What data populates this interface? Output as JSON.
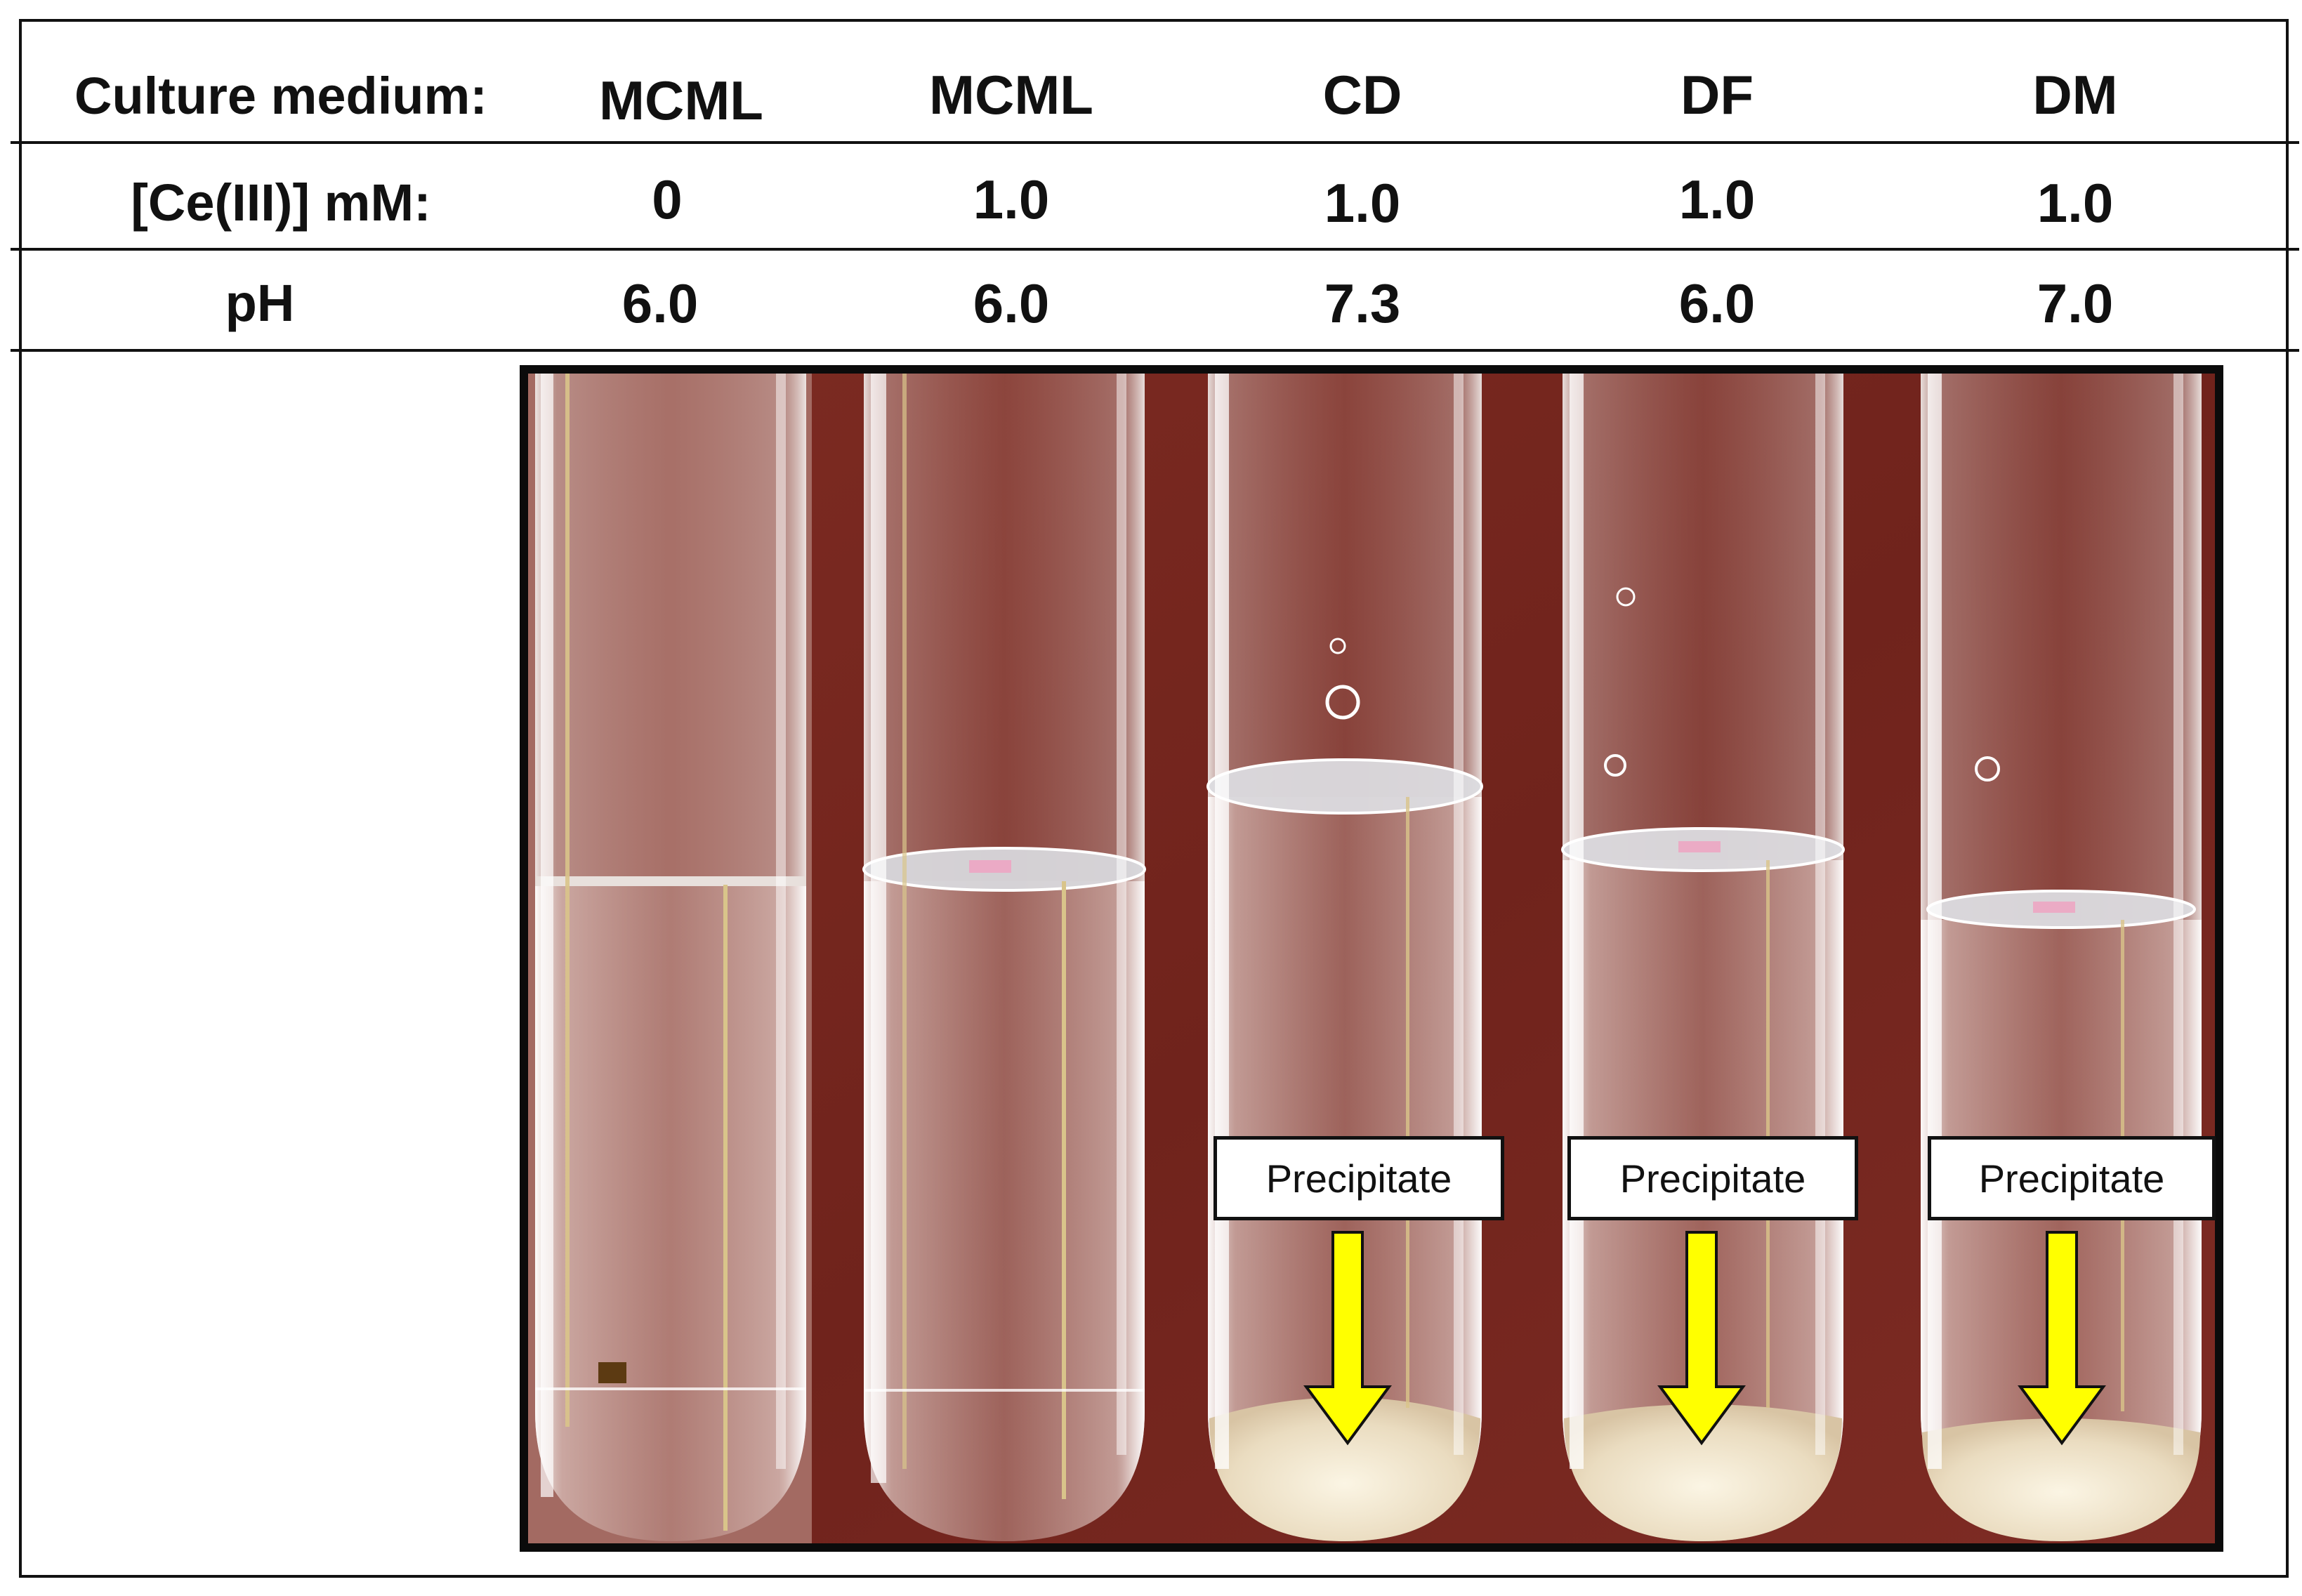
{
  "table": {
    "row_labels": {
      "medium": "Culture medium:",
      "ce": "[Ce(III)] mM:",
      "ph": "pH"
    },
    "columns": [
      {
        "medium": "MCML",
        "ce": "0",
        "ph": "6.0"
      },
      {
        "medium": "MCML",
        "ce": "1.0",
        "ph": "6.0"
      },
      {
        "medium": "CD",
        "ce": "1.0",
        "ph": "7.3"
      },
      {
        "medium": "DF",
        "ce": "1.0",
        "ph": "6.0"
      },
      {
        "medium": "DM",
        "ce": "1.0",
        "ph": "7.0"
      }
    ]
  },
  "annotations": {
    "precipitate_label": "Precipitate"
  },
  "colors": {
    "background_red": "#7a2a22",
    "arrow_yellow": "#ffff00",
    "precipitate_tint": "#efe6cf"
  }
}
